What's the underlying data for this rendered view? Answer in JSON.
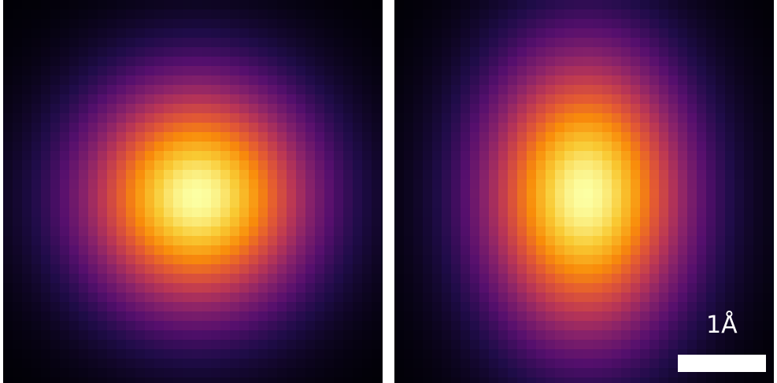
{
  "figure": {
    "panels": [
      {
        "label": "spherical-density",
        "shape": "round",
        "colormap": "inferno"
      },
      {
        "label": "elongated-density",
        "shape": "elongated-vertical",
        "colormap": "inferno"
      }
    ],
    "scale_bar": {
      "label": "1Å",
      "color": "#ffffff"
    }
  }
}
